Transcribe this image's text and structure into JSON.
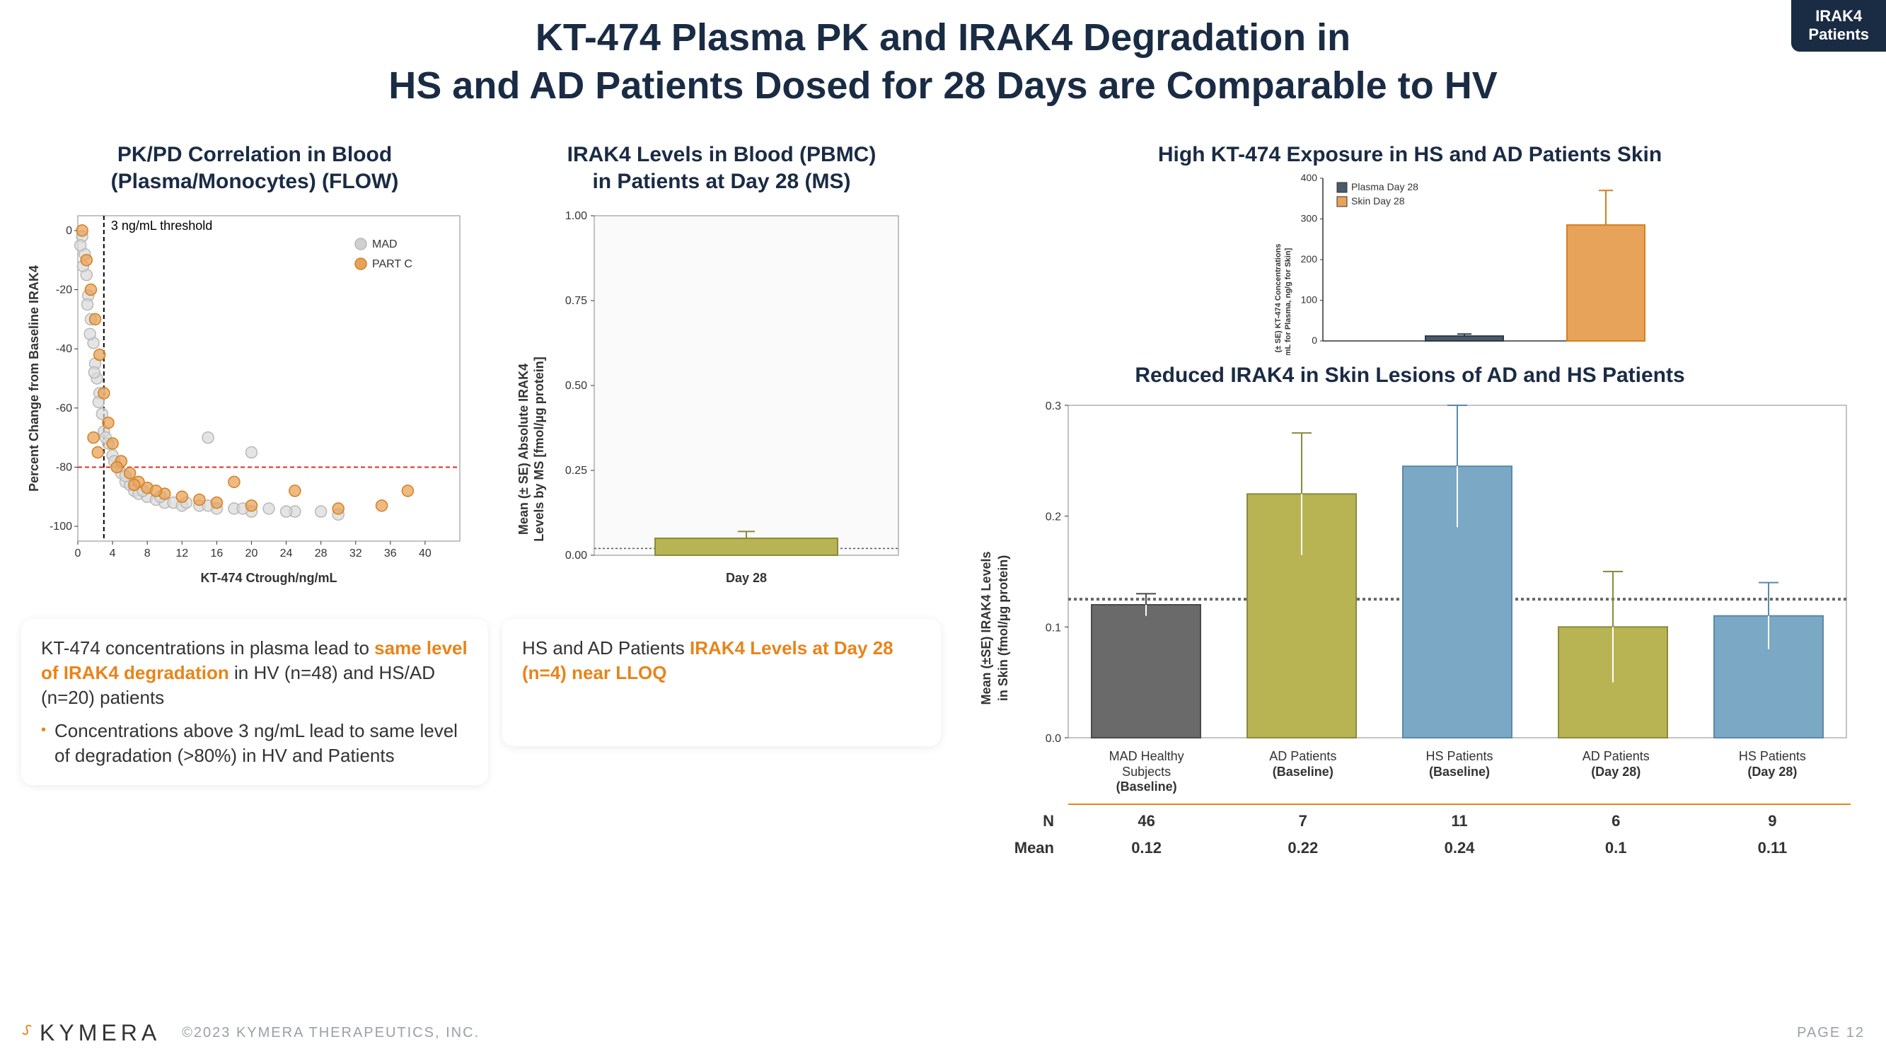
{
  "badge": {
    "line1": "IRAK4",
    "line2": "Patients"
  },
  "title_line1": "KT-474 Plasma PK and IRAK4 Degradation in",
  "title_line2": "HS and AD Patients Dosed for 28 Days are Comparable to HV",
  "scatter": {
    "title_line1": "PK/PD Correlation in Blood",
    "title_line2": "(Plasma/Monocytes) (FLOW)",
    "xlabel": "KT-474 Ctrough/ng/mL",
    "ylabel": "Percent Change from Baseline IRAK4",
    "xlim": [
      0,
      44
    ],
    "xticks": [
      0,
      4,
      8,
      12,
      16,
      20,
      24,
      28,
      32,
      36,
      40
    ],
    "ylim": [
      -105,
      5
    ],
    "yticks": [
      0,
      -20,
      -40,
      -60,
      -80,
      -100
    ],
    "threshold_x": 3,
    "threshold_label": "3 ng/mL threshold",
    "threshold_y": -80,
    "vline_color": "#000000",
    "hline_color": "#d93025",
    "legend": [
      {
        "label": "MAD",
        "fill": "#d0d0d0",
        "stroke": "#b8b8b8"
      },
      {
        "label": "PART C",
        "fill": "#e8a35a",
        "stroke": "#d47f1f"
      }
    ],
    "points_mad": [
      [
        0.5,
        -2
      ],
      [
        0.8,
        -8
      ],
      [
        1,
        -15
      ],
      [
        1.2,
        -22
      ],
      [
        1.5,
        -30
      ],
      [
        1.8,
        -38
      ],
      [
        2,
        -45
      ],
      [
        2.2,
        -50
      ],
      [
        2.5,
        -55
      ],
      [
        2.8,
        -62
      ],
      [
        3,
        -68
      ],
      [
        3.5,
        -72
      ],
      [
        4,
        -76
      ],
      [
        4.5,
        -80
      ],
      [
        5,
        -82
      ],
      [
        5.5,
        -85
      ],
      [
        6,
        -86
      ],
      [
        6.5,
        -88
      ],
      [
        7,
        -89
      ],
      [
        8,
        -90
      ],
      [
        9,
        -91
      ],
      [
        10,
        -92
      ],
      [
        11,
        -92
      ],
      [
        12,
        -93
      ],
      [
        14,
        -93
      ],
      [
        16,
        -94
      ],
      [
        18,
        -94
      ],
      [
        20,
        -95
      ],
      [
        22,
        -94
      ],
      [
        25,
        -95
      ],
      [
        0.3,
        -5
      ],
      [
        0.6,
        -12
      ],
      [
        1.1,
        -25
      ],
      [
        1.4,
        -35
      ],
      [
        1.9,
        -48
      ],
      [
        2.4,
        -58
      ],
      [
        3.2,
        -70
      ],
      [
        4.2,
        -78
      ],
      [
        5.5,
        -83
      ],
      [
        7.5,
        -88
      ],
      [
        9.5,
        -90
      ],
      [
        12.5,
        -92
      ],
      [
        15,
        -93
      ],
      [
        19,
        -94
      ],
      [
        24,
        -95
      ],
      [
        28,
        -95
      ],
      [
        30,
        -96
      ],
      [
        15,
        -70
      ],
      [
        20,
        -75
      ]
    ],
    "points_partc": [
      [
        0.5,
        0
      ],
      [
        1,
        -10
      ],
      [
        1.5,
        -20
      ],
      [
        2,
        -30
      ],
      [
        2.5,
        -42
      ],
      [
        3,
        -55
      ],
      [
        3.5,
        -65
      ],
      [
        4,
        -72
      ],
      [
        5,
        -78
      ],
      [
        6,
        -82
      ],
      [
        7,
        -85
      ],
      [
        8,
        -87
      ],
      [
        10,
        -89
      ],
      [
        12,
        -90
      ],
      [
        14,
        -91
      ],
      [
        16,
        -92
      ],
      [
        18,
        -85
      ],
      [
        20,
        -93
      ],
      [
        25,
        -88
      ],
      [
        30,
        -94
      ],
      [
        35,
        -93
      ],
      [
        38,
        -88
      ],
      [
        1.8,
        -70
      ],
      [
        2.3,
        -75
      ],
      [
        4.5,
        -80
      ],
      [
        6.5,
        -86
      ],
      [
        9,
        -88
      ]
    ],
    "marker_r": 8,
    "colors": {
      "mad_fill": "#d8d8d8",
      "mad_stroke": "#b8b8b8",
      "partc_fill": "#e8a35a",
      "partc_stroke": "#d47f1f"
    }
  },
  "note1": {
    "text_pre": "KT-474 concentrations in plasma lead to ",
    "highlight": "same level of IRAK4 degradation",
    "text_post": " in HV (n=48) and HS/AD (n=20) patients",
    "bullet": "Concentrations above 3 ng/mL lead to same level of degradation (>80%) in HV and Patients"
  },
  "bar_blood": {
    "title_line1": "IRAK4 Levels in Blood (PBMC)",
    "title_line2": "in Patients at Day 28 (MS)",
    "ylabel_line1": "Mean (± SE) Absolute IRAK4",
    "ylabel_line2": "Levels by MS [fmol/µg protein]",
    "ylim": [
      0,
      1.0
    ],
    "yticks": [
      "0.00",
      "0.25",
      "0.50",
      "0.75",
      "1.00"
    ],
    "ytick_vals": [
      0,
      0.25,
      0.5,
      0.75,
      1.0
    ],
    "category": "Day 28",
    "value": 0.05,
    "err": 0.02,
    "bar_color": "#b8b454",
    "bar_stroke": "#8a8a3d",
    "lloq": 0.02
  },
  "note2": {
    "text_pre": "HS and AD Patients ",
    "highlight": "IRAK4 Levels at Day 28 (n=4) near LLOQ"
  },
  "exposure": {
    "title": "High KT-474 Exposure in HS and AD Patients Skin",
    "ylabel_line1": "Mean (± SE) KT-474 Concentrations",
    "ylabel_line2": "[ng/mL for Plasma, ng/g for Skin]",
    "ylim": [
      0,
      400
    ],
    "yticks": [
      0,
      100,
      200,
      300,
      400
    ],
    "legend": [
      {
        "label": "Plasma Day 28",
        "color": "#4a5a6a"
      },
      {
        "label": "Skin Day 28",
        "color": "#e8a35a"
      }
    ],
    "bars": [
      {
        "value": 12,
        "err": 5,
        "color": "#4a5a6a",
        "stroke": "#2d3a48"
      },
      {
        "value": 285,
        "err": 85,
        "color": "#e8a35a",
        "stroke": "#d47f1f"
      }
    ]
  },
  "skin": {
    "title": "Reduced IRAK4 in Skin Lesions of AD and HS Patients",
    "ylabel_line1": "Mean (±SE) IRAK4 Levels",
    "ylabel_line2": "in Skin (fmol/µg protein)",
    "ylim": [
      0,
      0.3
    ],
    "yticks": [
      "0.0",
      "0.1",
      "0.2",
      "0.3"
    ],
    "ytick_vals": [
      0,
      0.1,
      0.2,
      0.3
    ],
    "ref_line": 0.125,
    "categories": [
      {
        "l1": "MAD Healthy",
        "l2": "Subjects",
        "l3": "(Baseline)",
        "bold3": true
      },
      {
        "l1": "AD Patients",
        "l2": "(Baseline)",
        "bold2": true
      },
      {
        "l1": "HS Patients",
        "l2": "(Baseline)",
        "bold2": true
      },
      {
        "l1": "AD Patients",
        "l2": "(Day 28)",
        "bold2": true
      },
      {
        "l1": "HS Patients",
        "l2": "(Day 28)",
        "bold2": true
      }
    ],
    "bars": [
      {
        "value": 0.12,
        "err": 0.01,
        "color": "#6a6a6a",
        "stroke": "#4a4a4a"
      },
      {
        "value": 0.22,
        "err": 0.055,
        "color": "#b8b454",
        "stroke": "#8a8a3d"
      },
      {
        "value": 0.245,
        "err": 0.055,
        "color": "#7ba8c4",
        "stroke": "#5a8aa8"
      },
      {
        "value": 0.1,
        "err": 0.05,
        "color": "#b8b454",
        "stroke": "#8a8a3d"
      },
      {
        "value": 0.11,
        "err": 0.03,
        "color": "#7ba8c4",
        "stroke": "#5a8aa8"
      }
    ],
    "table": {
      "rows": [
        {
          "label": "N",
          "vals": [
            "46",
            "7",
            "11",
            "6",
            "9"
          ]
        },
        {
          "label": "Mean",
          "vals": [
            "0.12",
            "0.22",
            "0.24",
            "0.1",
            "0.11"
          ]
        }
      ]
    }
  },
  "footer": {
    "logo": "KYMERA",
    "copyright": "©2023 KYMERA THERAPEUTICS, INC.",
    "page": "PAGE 12"
  }
}
